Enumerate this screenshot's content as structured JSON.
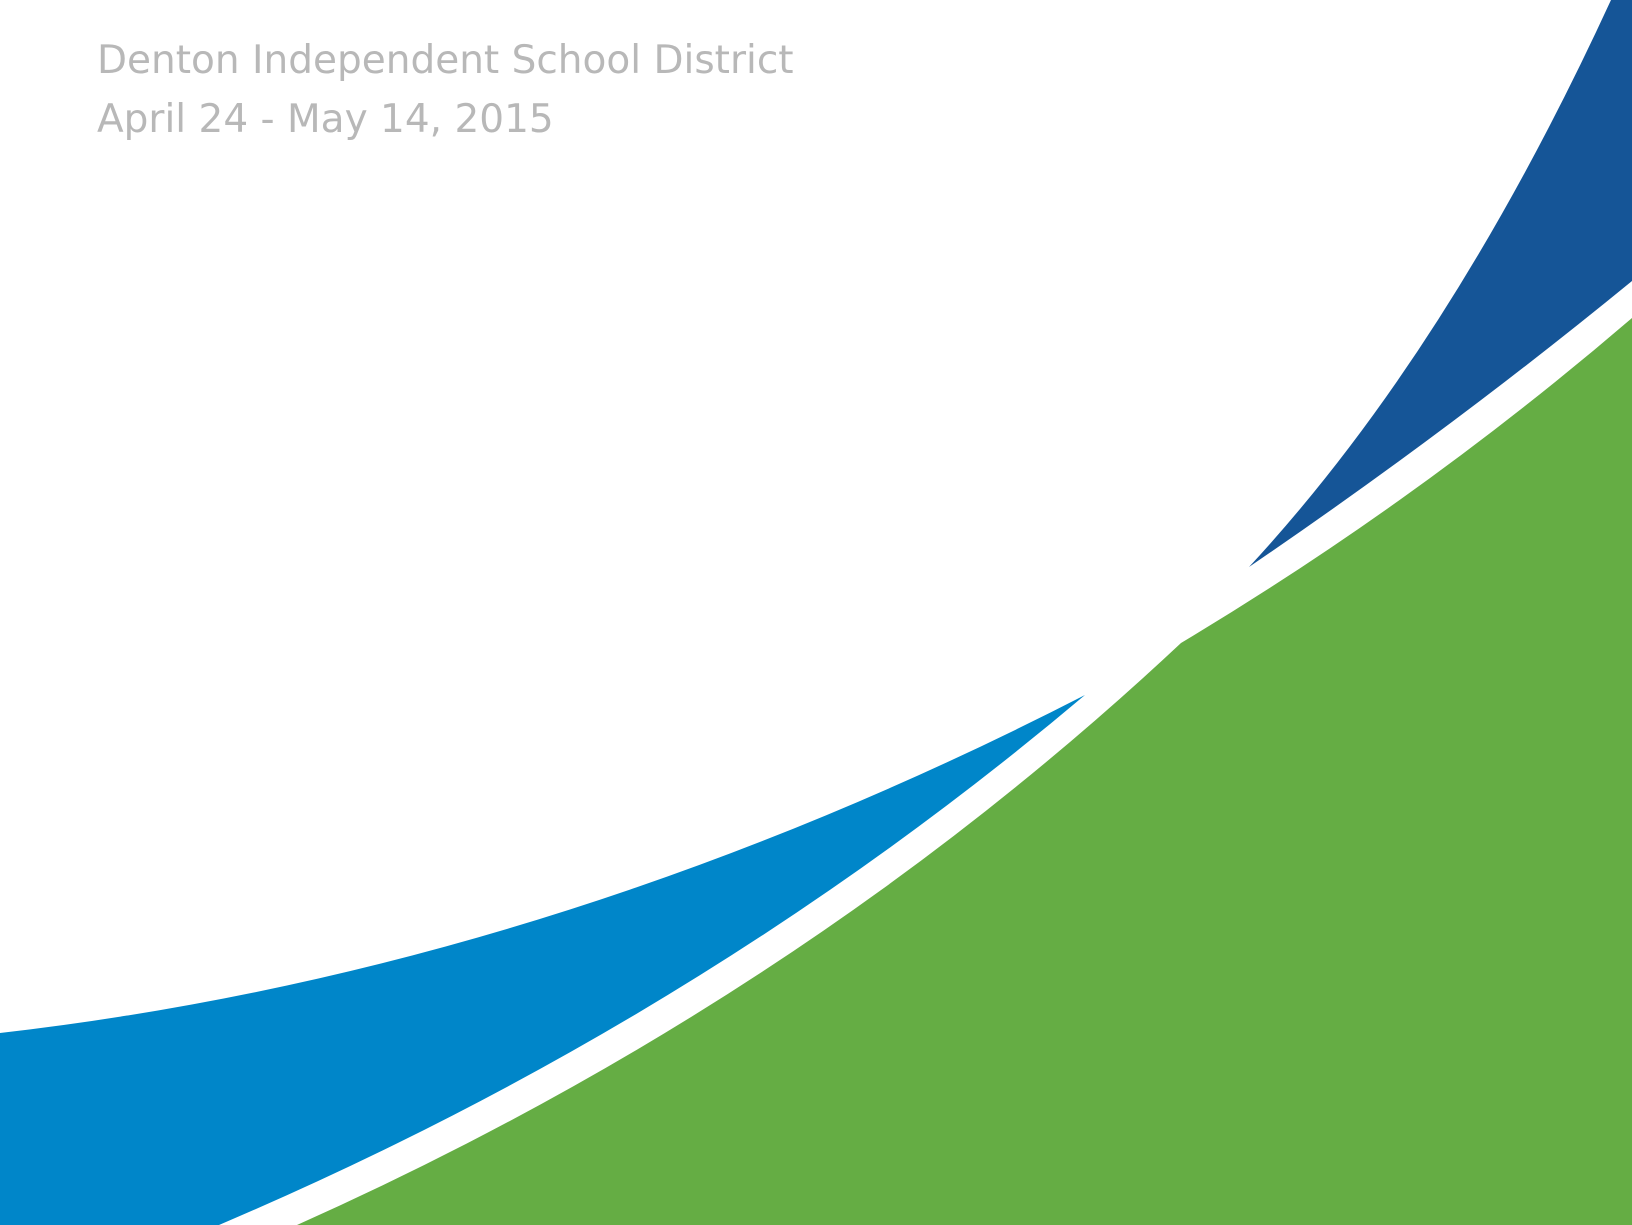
{
  "header": {
    "title": "Denton Independent School District",
    "dates": "April 24 - May 14, 2015"
  }
}
